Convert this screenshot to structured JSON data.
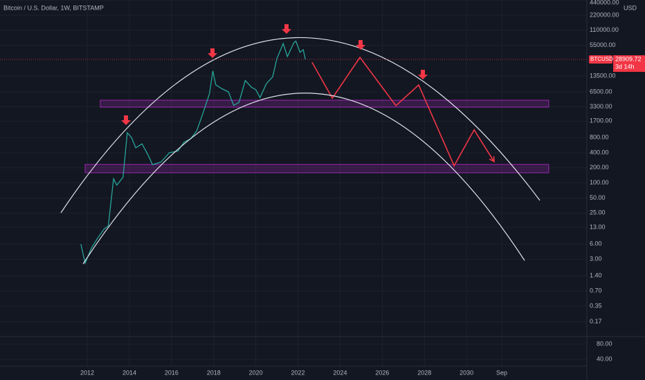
{
  "chart_data": {
    "type": "line",
    "title": "Bitcoin / U.S. Dollar, 1W, BITSTAMP",
    "y_unit": "USD",
    "log_y": true,
    "grid": true,
    "series": [
      {
        "name": "BTCUSD",
        "color": "#26a69a",
        "x": [
          2011.7,
          2011.9,
          2012.2,
          2012.5,
          2012.8,
          2013.0,
          2013.25,
          2013.4,
          2013.7,
          2013.9,
          2014.1,
          2014.3,
          2014.6,
          2014.9,
          2015.1,
          2015.5,
          2015.9,
          2016.3,
          2016.6,
          2016.9,
          2017.2,
          2017.5,
          2017.8,
          2017.96,
          2018.1,
          2018.4,
          2018.7,
          2018.95,
          2019.2,
          2019.5,
          2019.8,
          2020.0,
          2020.2,
          2020.5,
          2020.8,
          2021.0,
          2021.3,
          2021.5,
          2021.8,
          2021.9,
          2022.1,
          2022.25,
          2022.35
        ],
        "values": [
          6,
          2.5,
          5,
          8,
          12,
          14,
          120,
          90,
          130,
          1000,
          800,
          500,
          600,
          350,
          230,
          260,
          400,
          430,
          650,
          750,
          1100,
          2500,
          6000,
          17000,
          9000,
          7500,
          6500,
          3500,
          4000,
          11000,
          8000,
          7200,
          5000,
          9500,
          13000,
          30000,
          60000,
          33000,
          62000,
          67000,
          40000,
          45000,
          29000
        ]
      }
    ],
    "projection": {
      "color": "#f23645",
      "x": [
        2022.67,
        2023.63,
        2024.94,
        2026.65,
        2027.73,
        2029.41,
        2030.36,
        2031.31
      ],
      "values": [
        25400,
        4880,
        31800,
        3450,
        8930,
        219,
        1140,
        264
      ]
    },
    "zones": [
      {
        "x": [
          2012.62,
          2033.9
        ],
        "values": [
          3235,
          4440
        ]
      },
      {
        "x": [
          2011.9,
          2033.9
        ],
        "values": [
          159,
          233
        ]
      }
    ],
    "last_price": 28909.72,
    "symbol": "BTCUSD",
    "countdown": "3d 14h",
    "xlim": [
      2007.86,
      2035.71
    ],
    "xticks": [
      2012,
      2014,
      2016,
      2018,
      2020,
      2022,
      2024,
      2026,
      2028,
      2030,
      {
        "value": 2031.67,
        "label": "Sep"
      }
    ],
    "ylim": [
      0.0866,
      442000
    ],
    "yticks": [
      {
        "value": 440000,
        "label": "440000.00"
      },
      {
        "value": 220000,
        "label": "220000.00"
      },
      {
        "value": 110000,
        "label": "110000.00"
      },
      {
        "value": 55000,
        "label": "55000.00"
      },
      {
        "value": 13500,
        "label": "13500.00"
      },
      {
        "value": 6500,
        "label": "6500.00"
      },
      {
        "value": 3300,
        "label": "3300.00"
      },
      {
        "value": 1700,
        "label": "1700.00"
      },
      {
        "value": 800,
        "label": "800.00"
      },
      {
        "value": 400,
        "label": "400.00"
      },
      {
        "value": 200,
        "label": "200.00"
      },
      {
        "value": 100,
        "label": "100.00"
      },
      {
        "value": 50,
        "label": "50.00"
      },
      {
        "value": 25,
        "label": "25.00"
      },
      {
        "value": 13,
        "label": "13.00"
      },
      {
        "value": 6,
        "label": "6.00"
      },
      {
        "value": 3,
        "label": "3.00"
      },
      {
        "value": 1.4,
        "label": "1.40"
      },
      {
        "value": 0.7,
        "label": "0.70"
      },
      {
        "value": 0.35,
        "label": "0.35"
      },
      {
        "value": 0.17,
        "label": "0.17"
      }
    ],
    "y2lim": [
      29.3,
      113
    ],
    "y2ticks": [
      {
        "value": 80,
        "label": "80.00"
      },
      {
        "value": 40,
        "label": "40.00"
      }
    ]
  }
}
